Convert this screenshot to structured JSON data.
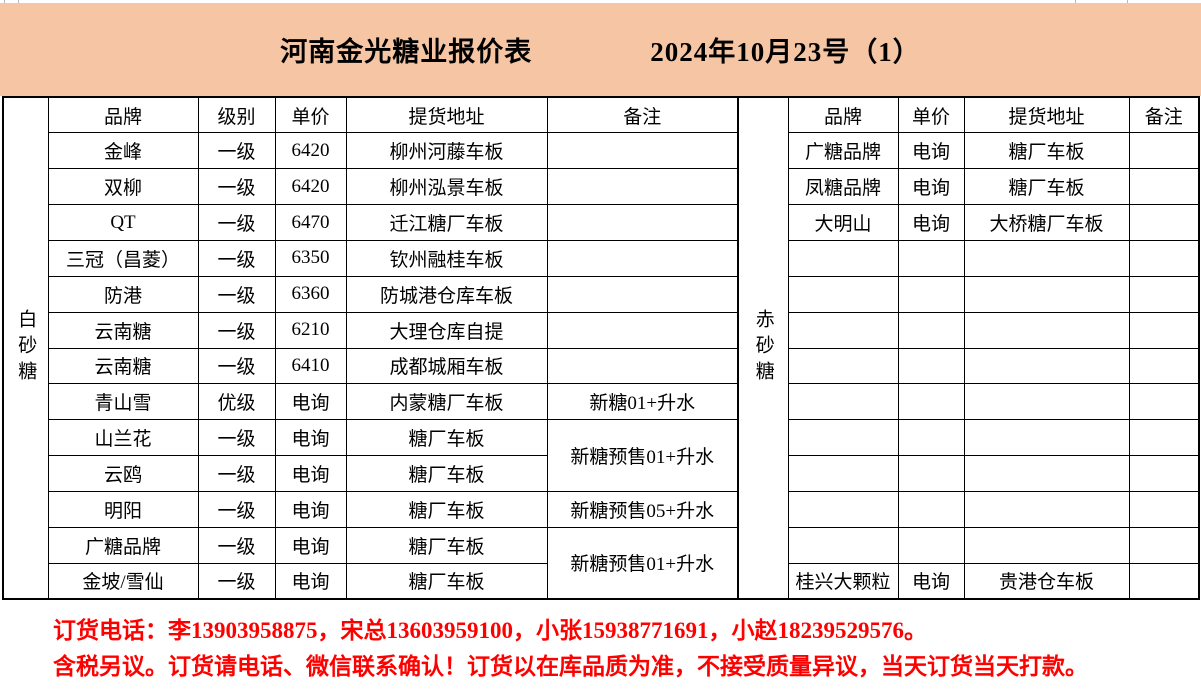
{
  "header": {
    "title": "河南金光糖业报价表",
    "date": "2024年10月23号（1）"
  },
  "colors": {
    "band_peach": "#F6C5A3",
    "remark_red": "#FF0000",
    "border_black": "#000000"
  },
  "left_table": {
    "category": "白砂糖",
    "columns": [
      "品牌",
      "级别",
      "单价",
      "提货地址",
      "备注"
    ],
    "rows": [
      {
        "brand": "金峰",
        "grade": "一级",
        "price": "6420",
        "address": "柳州河藤车板",
        "remark": "",
        "remark_rowspan": 1
      },
      {
        "brand": "双柳",
        "grade": "一级",
        "price": "6420",
        "address": "柳州泓景车板",
        "remark": "",
        "remark_rowspan": 1
      },
      {
        "brand": "QT",
        "grade": "一级",
        "price": "6470",
        "address": "迁江糖厂车板",
        "remark": "",
        "remark_rowspan": 1
      },
      {
        "brand": "三冠（昌菱）",
        "grade": "一级",
        "price": "6350",
        "address": "钦州融桂车板",
        "remark": "",
        "remark_rowspan": 1
      },
      {
        "brand": "防港",
        "grade": "一级",
        "price": "6360",
        "address": "防城港仓库车板",
        "remark": "",
        "remark_rowspan": 1
      },
      {
        "brand": "云南糖",
        "grade": "一级",
        "price": "6210",
        "address": "大理仓库自提",
        "remark": "",
        "remark_rowspan": 1
      },
      {
        "brand": "云南糖",
        "grade": "一级",
        "price": "6410",
        "address": "成都城厢车板",
        "remark": "",
        "remark_rowspan": 1
      },
      {
        "brand": "青山雪",
        "grade": "优级",
        "price": "电询",
        "address": "内蒙糖厂车板",
        "remark": "新糖01+升水",
        "remark_rowspan": 1
      },
      {
        "brand": "山兰花",
        "grade": "一级",
        "price": "电询",
        "address": "糖厂车板",
        "remark": "新糖预售01+升水",
        "remark_rowspan": 2
      },
      {
        "brand": "云鸥",
        "grade": "一级",
        "price": "电询",
        "address": "糖厂车板",
        "remark": null
      },
      {
        "brand": "明阳",
        "grade": "一级",
        "price": "电询",
        "address": "糖厂车板",
        "remark": "新糖预售05+升水",
        "remark_rowspan": 1
      },
      {
        "brand": "广糖品牌",
        "grade": "一级",
        "price": "电询",
        "address": "糖厂车板",
        "remark": "新糖预售01+升水",
        "remark_rowspan": 2
      },
      {
        "brand": "金坡/雪仙",
        "grade": "一级",
        "price": "电询",
        "address": "糖厂车板",
        "remark": null
      }
    ]
  },
  "right_table": {
    "category": "赤砂糖",
    "columns": [
      "品牌",
      "单价",
      "提货地址",
      "备注"
    ],
    "rows": [
      {
        "brand": "广糖品牌",
        "price": "电询",
        "address": "糖厂车板",
        "remark": "",
        "remark_rowspan": 1
      },
      {
        "brand": "凤糖品牌",
        "price": "电询",
        "address": "糖厂车板",
        "remark": "",
        "remark_rowspan": 1
      },
      {
        "brand": "大明山",
        "price": "电询",
        "address": "大桥糖厂车板",
        "remark": "",
        "remark_rowspan": 1
      },
      {
        "brand": "",
        "price": "",
        "address": "",
        "remark": "",
        "remark_rowspan": 1
      },
      {
        "brand": "",
        "price": "",
        "address": "",
        "remark": "",
        "remark_rowspan": 1
      },
      {
        "brand": "",
        "price": "",
        "address": "",
        "remark": "",
        "remark_rowspan": 1
      },
      {
        "brand": "",
        "price": "",
        "address": "",
        "remark": "",
        "remark_rowspan": 1
      },
      {
        "brand": "",
        "price": "",
        "address": "",
        "remark": "",
        "remark_rowspan": 1
      },
      {
        "brand": "",
        "price": "",
        "address": "",
        "remark": "",
        "remark_rowspan": 1
      },
      {
        "brand": "",
        "price": "",
        "address": "",
        "remark": "",
        "remark_rowspan": 1
      },
      {
        "brand": "",
        "price": "",
        "address": "",
        "remark": "",
        "remark_rowspan": 1
      },
      {
        "brand": "",
        "price": "",
        "address": "",
        "remark": "",
        "remark_rowspan": 1
      },
      {
        "brand": "桂兴大颗粒",
        "price": "电询",
        "address": "贵港仓车板",
        "remark": "",
        "remark_rowspan": 1
      }
    ]
  },
  "footer": {
    "line1": "订货电话：李13903958875，宋总13603959100，小张15938771691，小赵18239529576。",
    "line2": "含税另议。订货请电话、微信联系确认！订货以在库品质为准，不接受质量异议，当天订货当天打款。"
  }
}
